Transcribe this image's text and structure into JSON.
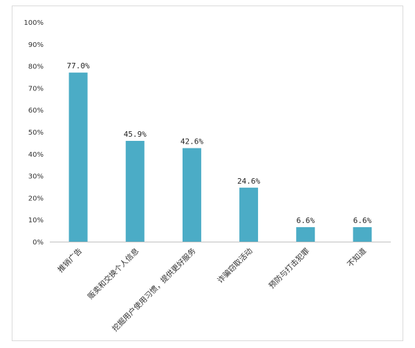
{
  "chart_data": {
    "type": "bar",
    "categories": [
      "推销广告",
      "贩卖和交换个人信息",
      "挖掘用户使用习惯，提供更好服务",
      "诈骗窃取活动",
      "预防与打击犯罪",
      "不知道"
    ],
    "values": [
      77.0,
      45.9,
      42.6,
      24.6,
      6.6,
      6.6
    ],
    "data_labels": [
      "77.0%",
      "45.9%",
      "42.6%",
      "24.6%",
      "6.6%",
      "6.6%"
    ],
    "y_ticks": [
      0,
      10,
      20,
      30,
      40,
      50,
      60,
      70,
      80,
      90,
      100
    ],
    "y_tick_labels": [
      "0%",
      "10%",
      "20%",
      "30%",
      "40%",
      "50%",
      "60%",
      "70%",
      "80%",
      "90%",
      "100%"
    ],
    "ylim": [
      0,
      100
    ],
    "grid": false,
    "legend": "none",
    "colors": {
      "bar": "#4bacc6",
      "axis": "#bfbfbf"
    }
  }
}
